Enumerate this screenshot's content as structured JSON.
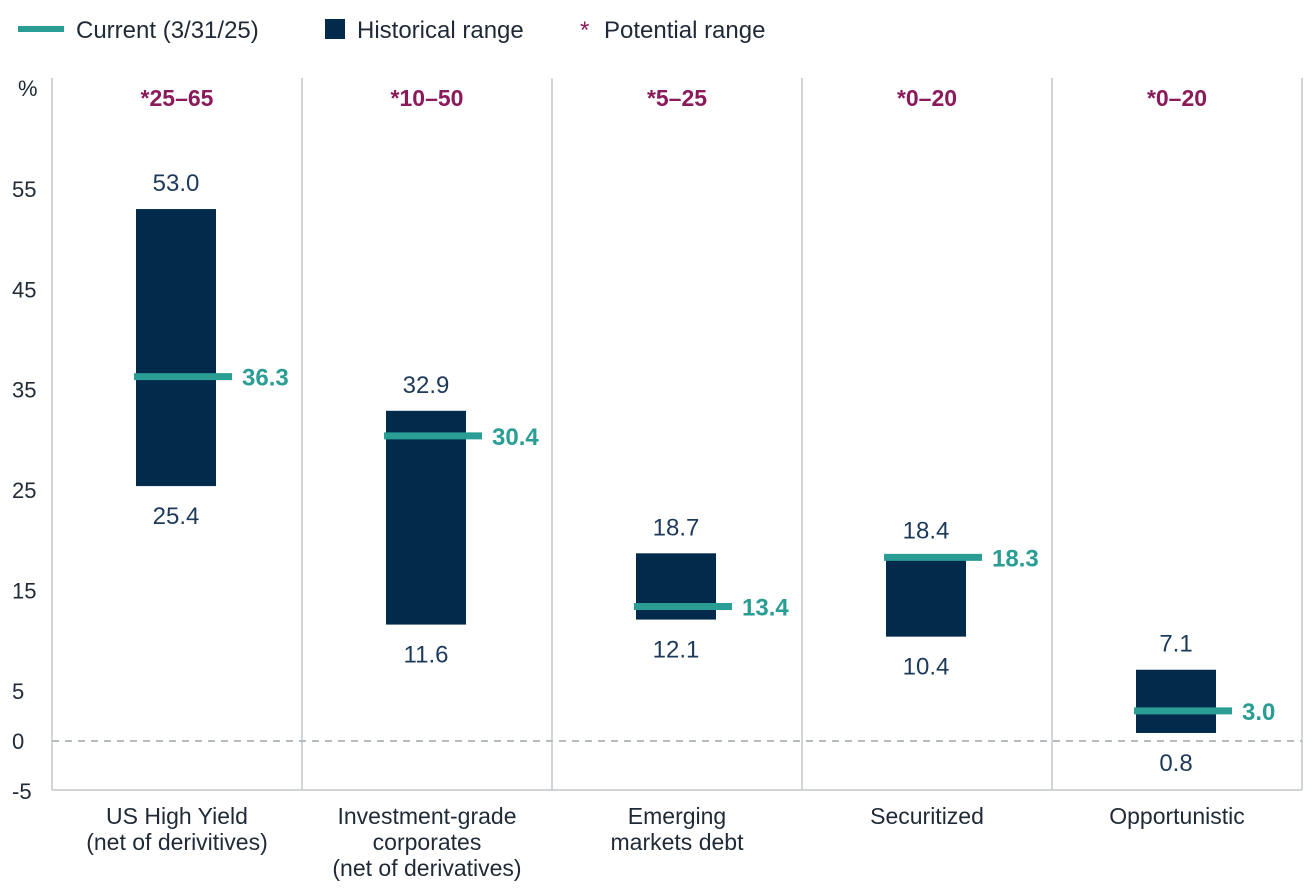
{
  "chart_data": {
    "type": "range",
    "ylabel": "%",
    "yticks": [
      -5,
      0,
      5,
      15,
      25,
      35,
      45,
      55
    ],
    "ylim": [
      -5,
      65
    ],
    "zero_line": "dashed",
    "legend": {
      "position": "top-left",
      "current_label": "Current (3/31/25)",
      "historical_label": "Historical range",
      "potential_marker": "*",
      "potential_label": "Potential range"
    },
    "categories": [
      {
        "name_lines": [
          "US High Yield",
          "(net of derivitives)"
        ],
        "potential_range": "*25–65",
        "historical_high": 53.0,
        "historical_high_label": "53.0",
        "historical_low": 25.4,
        "historical_low_label": "25.4",
        "current": 36.3,
        "current_label": "36.3"
      },
      {
        "name_lines": [
          "Investment-grade",
          "corporates",
          "(net of derivatives)"
        ],
        "potential_range": "*10–50",
        "historical_high": 32.9,
        "historical_high_label": "32.9",
        "historical_low": 11.6,
        "historical_low_label": "11.6",
        "current": 30.4,
        "current_label": "30.4"
      },
      {
        "name_lines": [
          "Emerging",
          "markets debt"
        ],
        "potential_range": "*5–25",
        "historical_high": 18.7,
        "historical_high_label": "18.7",
        "historical_low": 12.1,
        "historical_low_label": "12.1",
        "current": 13.4,
        "current_label": "13.4"
      },
      {
        "name_lines": [
          "Securitized"
        ],
        "potential_range": "*0–20",
        "historical_high": 18.4,
        "historical_high_label": "18.4",
        "historical_low": 10.4,
        "historical_low_label": "10.4",
        "current": 18.3,
        "current_label": "18.3"
      },
      {
        "name_lines": [
          "Opportunistic"
        ],
        "potential_range": "*0–20",
        "historical_high": 7.1,
        "historical_high_label": "7.1",
        "historical_low": 0.8,
        "historical_low_label": "0.8",
        "current": 3.0,
        "current_label": "3.0"
      }
    ]
  },
  "colors": {
    "navy": "#022a4b",
    "teal": "#2a9d95",
    "purple": "#8a1a5a",
    "grid": "#c2c7cb",
    "dashed": "#b7bcc0",
    "text": "#1f2a36",
    "value_text": "#1d3a5a"
  }
}
